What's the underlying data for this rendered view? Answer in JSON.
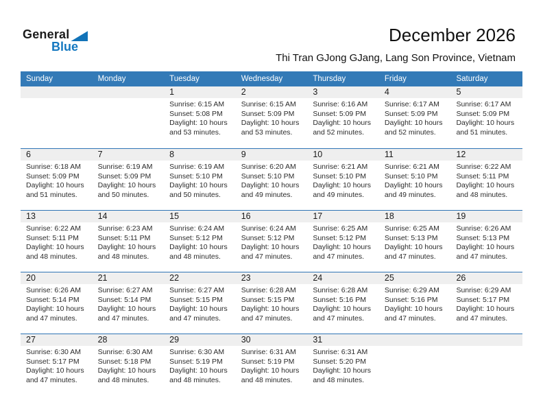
{
  "logo": {
    "line1": "General",
    "line2": "Blue",
    "accent_color": "#1478c0"
  },
  "header": {
    "title": "December 2026",
    "location": "Thi Tran GJong GJang, Lang Son Province, Vietnam"
  },
  "colors": {
    "weekday_bar": "#337ab7",
    "row_divider": "#2e74b5",
    "day_number_strip": "#efefef",
    "weekday_text": "#ffffff"
  },
  "weekdays": [
    "Sunday",
    "Monday",
    "Tuesday",
    "Wednesday",
    "Thursday",
    "Friday",
    "Saturday"
  ],
  "weeks": [
    [
      null,
      null,
      {
        "day": "1",
        "sunrise": "Sunrise: 6:15 AM",
        "sunset": "Sunset: 5:08 PM",
        "daylight": "Daylight: 10 hours and 53 minutes."
      },
      {
        "day": "2",
        "sunrise": "Sunrise: 6:15 AM",
        "sunset": "Sunset: 5:09 PM",
        "daylight": "Daylight: 10 hours and 53 minutes."
      },
      {
        "day": "3",
        "sunrise": "Sunrise: 6:16 AM",
        "sunset": "Sunset: 5:09 PM",
        "daylight": "Daylight: 10 hours and 52 minutes."
      },
      {
        "day": "4",
        "sunrise": "Sunrise: 6:17 AM",
        "sunset": "Sunset: 5:09 PM",
        "daylight": "Daylight: 10 hours and 52 minutes."
      },
      {
        "day": "5",
        "sunrise": "Sunrise: 6:17 AM",
        "sunset": "Sunset: 5:09 PM",
        "daylight": "Daylight: 10 hours and 51 minutes."
      }
    ],
    [
      {
        "day": "6",
        "sunrise": "Sunrise: 6:18 AM",
        "sunset": "Sunset: 5:09 PM",
        "daylight": "Daylight: 10 hours and 51 minutes."
      },
      {
        "day": "7",
        "sunrise": "Sunrise: 6:19 AM",
        "sunset": "Sunset: 5:09 PM",
        "daylight": "Daylight: 10 hours and 50 minutes."
      },
      {
        "day": "8",
        "sunrise": "Sunrise: 6:19 AM",
        "sunset": "Sunset: 5:10 PM",
        "daylight": "Daylight: 10 hours and 50 minutes."
      },
      {
        "day": "9",
        "sunrise": "Sunrise: 6:20 AM",
        "sunset": "Sunset: 5:10 PM",
        "daylight": "Daylight: 10 hours and 49 minutes."
      },
      {
        "day": "10",
        "sunrise": "Sunrise: 6:21 AM",
        "sunset": "Sunset: 5:10 PM",
        "daylight": "Daylight: 10 hours and 49 minutes."
      },
      {
        "day": "11",
        "sunrise": "Sunrise: 6:21 AM",
        "sunset": "Sunset: 5:10 PM",
        "daylight": "Daylight: 10 hours and 49 minutes."
      },
      {
        "day": "12",
        "sunrise": "Sunrise: 6:22 AM",
        "sunset": "Sunset: 5:11 PM",
        "daylight": "Daylight: 10 hours and 48 minutes."
      }
    ],
    [
      {
        "day": "13",
        "sunrise": "Sunrise: 6:22 AM",
        "sunset": "Sunset: 5:11 PM",
        "daylight": "Daylight: 10 hours and 48 minutes."
      },
      {
        "day": "14",
        "sunrise": "Sunrise: 6:23 AM",
        "sunset": "Sunset: 5:11 PM",
        "daylight": "Daylight: 10 hours and 48 minutes."
      },
      {
        "day": "15",
        "sunrise": "Sunrise: 6:24 AM",
        "sunset": "Sunset: 5:12 PM",
        "daylight": "Daylight: 10 hours and 48 minutes."
      },
      {
        "day": "16",
        "sunrise": "Sunrise: 6:24 AM",
        "sunset": "Sunset: 5:12 PM",
        "daylight": "Daylight: 10 hours and 47 minutes."
      },
      {
        "day": "17",
        "sunrise": "Sunrise: 6:25 AM",
        "sunset": "Sunset: 5:12 PM",
        "daylight": "Daylight: 10 hours and 47 minutes."
      },
      {
        "day": "18",
        "sunrise": "Sunrise: 6:25 AM",
        "sunset": "Sunset: 5:13 PM",
        "daylight": "Daylight: 10 hours and 47 minutes."
      },
      {
        "day": "19",
        "sunrise": "Sunrise: 6:26 AM",
        "sunset": "Sunset: 5:13 PM",
        "daylight": "Daylight: 10 hours and 47 minutes."
      }
    ],
    [
      {
        "day": "20",
        "sunrise": "Sunrise: 6:26 AM",
        "sunset": "Sunset: 5:14 PM",
        "daylight": "Daylight: 10 hours and 47 minutes."
      },
      {
        "day": "21",
        "sunrise": "Sunrise: 6:27 AM",
        "sunset": "Sunset: 5:14 PM",
        "daylight": "Daylight: 10 hours and 47 minutes."
      },
      {
        "day": "22",
        "sunrise": "Sunrise: 6:27 AM",
        "sunset": "Sunset: 5:15 PM",
        "daylight": "Daylight: 10 hours and 47 minutes."
      },
      {
        "day": "23",
        "sunrise": "Sunrise: 6:28 AM",
        "sunset": "Sunset: 5:15 PM",
        "daylight": "Daylight: 10 hours and 47 minutes."
      },
      {
        "day": "24",
        "sunrise": "Sunrise: 6:28 AM",
        "sunset": "Sunset: 5:16 PM",
        "daylight": "Daylight: 10 hours and 47 minutes."
      },
      {
        "day": "25",
        "sunrise": "Sunrise: 6:29 AM",
        "sunset": "Sunset: 5:16 PM",
        "daylight": "Daylight: 10 hours and 47 minutes."
      },
      {
        "day": "26",
        "sunrise": "Sunrise: 6:29 AM",
        "sunset": "Sunset: 5:17 PM",
        "daylight": "Daylight: 10 hours and 47 minutes."
      }
    ],
    [
      {
        "day": "27",
        "sunrise": "Sunrise: 6:30 AM",
        "sunset": "Sunset: 5:17 PM",
        "daylight": "Daylight: 10 hours and 47 minutes."
      },
      {
        "day": "28",
        "sunrise": "Sunrise: 6:30 AM",
        "sunset": "Sunset: 5:18 PM",
        "daylight": "Daylight: 10 hours and 48 minutes."
      },
      {
        "day": "29",
        "sunrise": "Sunrise: 6:30 AM",
        "sunset": "Sunset: 5:19 PM",
        "daylight": "Daylight: 10 hours and 48 minutes."
      },
      {
        "day": "30",
        "sunrise": "Sunrise: 6:31 AM",
        "sunset": "Sunset: 5:19 PM",
        "daylight": "Daylight: 10 hours and 48 minutes."
      },
      {
        "day": "31",
        "sunrise": "Sunrise: 6:31 AM",
        "sunset": "Sunset: 5:20 PM",
        "daylight": "Daylight: 10 hours and 48 minutes."
      },
      null,
      null
    ]
  ]
}
